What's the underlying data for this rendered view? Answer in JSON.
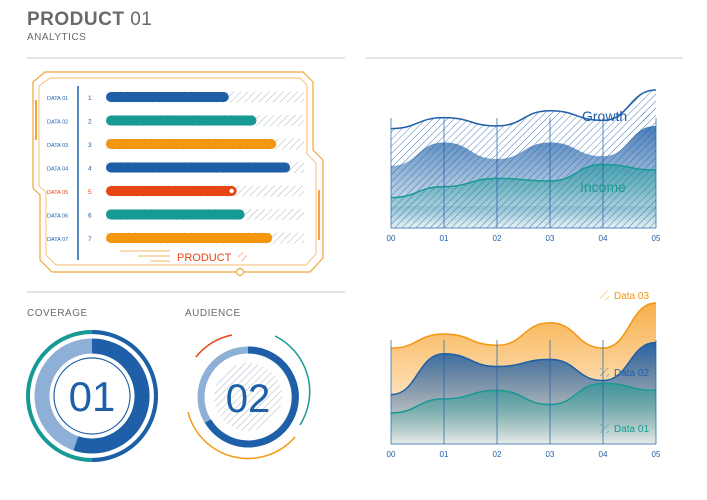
{
  "header": {
    "title_bold": "PRODUCT",
    "title_light": "01",
    "subtitle": "ANALYTICS"
  },
  "colors": {
    "blue": "#1e5fa8",
    "teal": "#179a94",
    "orange": "#f5960f",
    "red": "#e84515",
    "frame_orange": "#f4a43a",
    "text_gray": "#6a6a6a"
  },
  "bars_panel": {
    "footer_label": "PRODUCT",
    "rows": [
      {
        "label": "DATA 01",
        "index": "1",
        "value": 0.62,
        "color": "#1e5fa8"
      },
      {
        "label": "DATA 02",
        "index": "2",
        "value": 0.76,
        "color": "#179a94"
      },
      {
        "label": "DATA 03",
        "index": "3",
        "value": 0.86,
        "color": "#f5960f"
      },
      {
        "label": "DATA 04",
        "index": "4",
        "value": 0.93,
        "color": "#1e5fa8"
      },
      {
        "label": "DATA 05",
        "index": "5",
        "value": 0.66,
        "color": "#e84515",
        "highlight": true
      },
      {
        "label": "DATA 06",
        "index": "6",
        "value": 0.7,
        "color": "#179a94"
      },
      {
        "label": "DATA 07",
        "index": "7",
        "value": 0.84,
        "color": "#f5960f"
      }
    ]
  },
  "coverage": {
    "title": "COVERAGE",
    "value": "01"
  },
  "audience": {
    "title": "AUDIENCE",
    "value": "02"
  },
  "chart_data": [
    {
      "type": "area",
      "x": [
        "00",
        "01",
        "02",
        "03",
        "04",
        "05"
      ],
      "series": [
        {
          "name": "Growth",
          "values": [
            0.72,
            0.8,
            0.74,
            0.85,
            0.78,
            1.0
          ]
        },
        {
          "name": "Income",
          "values": [
            0.22,
            0.3,
            0.36,
            0.34,
            0.46,
            0.42
          ]
        }
      ]
    },
    {
      "type": "area",
      "x": [
        "00",
        "01",
        "02",
        "03",
        "04",
        "05"
      ],
      "series": [
        {
          "name": "Data 03",
          "values": [
            0.68,
            0.78,
            0.7,
            0.86,
            0.68,
            1.0
          ]
        },
        {
          "name": "Data 02",
          "values": [
            0.35,
            0.64,
            0.55,
            0.6,
            0.45,
            0.72
          ]
        },
        {
          "name": "Data 01",
          "values": [
            0.22,
            0.32,
            0.38,
            0.28,
            0.43,
            0.38
          ]
        }
      ]
    }
  ]
}
